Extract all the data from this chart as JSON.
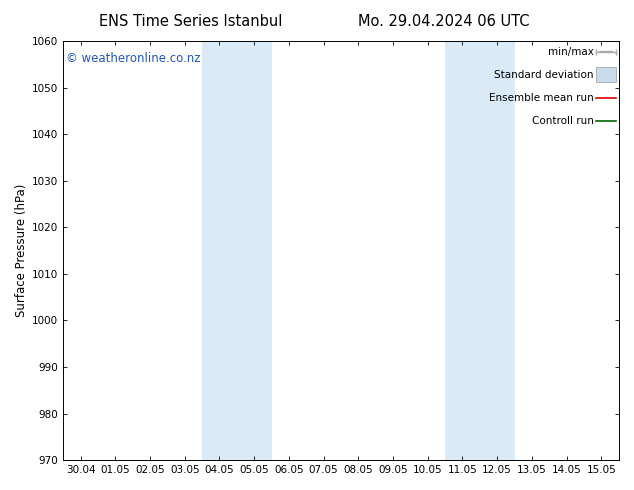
{
  "title_left": "ENS Time Series Istanbul",
  "title_right": "Mo. 29.04.2024 06 UTC",
  "ylabel": "Surface Pressure (hPa)",
  "ylim": [
    970,
    1060
  ],
  "yticks": [
    970,
    980,
    990,
    1000,
    1010,
    1020,
    1030,
    1040,
    1050,
    1060
  ],
  "x_tick_labels": [
    "30.04",
    "01.05",
    "02.05",
    "03.05",
    "04.05",
    "05.05",
    "06.05",
    "07.05",
    "08.05",
    "09.05",
    "10.05",
    "11.05",
    "12.05",
    "13.05",
    "14.05",
    "15.05"
  ],
  "x_tick_positions": [
    0,
    1,
    2,
    3,
    4,
    5,
    6,
    7,
    8,
    9,
    10,
    11,
    12,
    13,
    14,
    15
  ],
  "xlim": [
    -0.5,
    15.5
  ],
  "shaded_bands": [
    {
      "x_start": 3.5,
      "x_end": 5.5,
      "color": "#daeaf6"
    },
    {
      "x_start": 10.5,
      "x_end": 12.5,
      "color": "#daeaf6"
    }
  ],
  "legend_items": [
    {
      "label": "min/max",
      "color": "#aaaaaa",
      "lw": 1.0,
      "style": "minmax"
    },
    {
      "label": "Standard deviation",
      "color": "#c8dced",
      "lw": 8,
      "style": "band"
    },
    {
      "label": "Ensemble mean run",
      "color": "#dd0000",
      "lw": 1.2,
      "style": "line"
    },
    {
      "label": "Controll run",
      "color": "#006600",
      "lw": 1.2,
      "style": "line"
    }
  ],
  "watermark_text": "© weatheronline.co.nz",
  "watermark_color": "#2255bb",
  "watermark_fontsize": 8.5,
  "bg_color": "#ffffff",
  "plot_bg_color": "#ffffff",
  "title_fontsize": 10.5,
  "tick_fontsize": 7.5,
  "ylabel_fontsize": 8.5,
  "legend_fontsize": 7.5
}
